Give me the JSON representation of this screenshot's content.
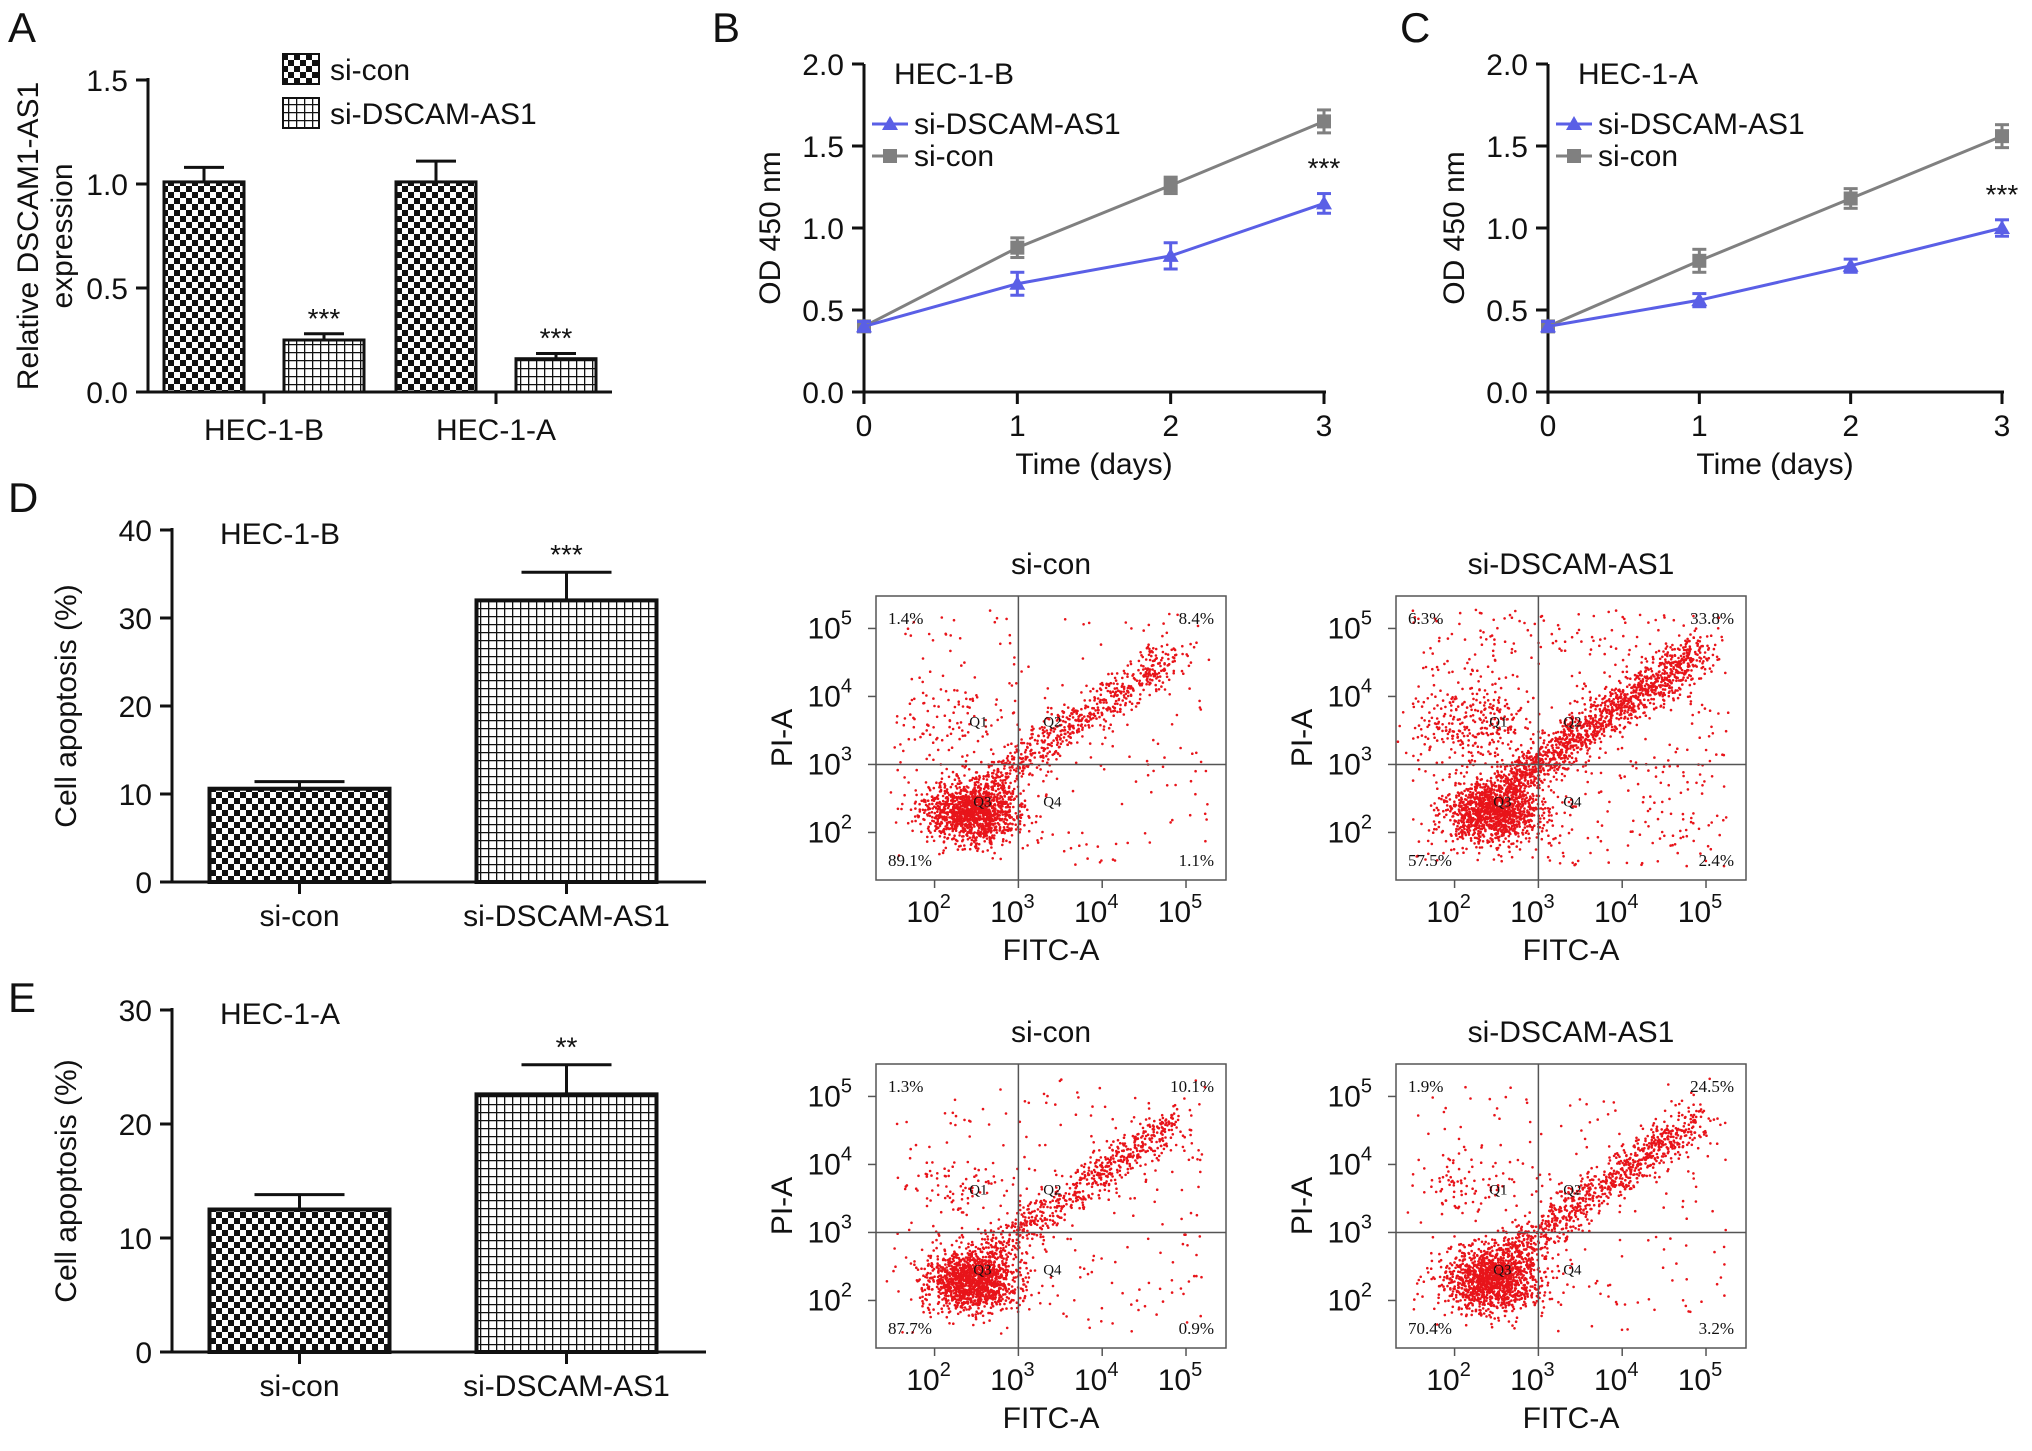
{
  "colors": {
    "si_dscam": "#5a5fe6",
    "si_con": "#808080",
    "dots": "#e8141a",
    "axis": "#111111"
  },
  "chart_data": [
    {
      "panel": "A",
      "type": "bar",
      "title": "",
      "ylabel": "Relative DSCAM1-AS1 expression",
      "ylabel_lines": [
        "Relative DSCAM1-AS1",
        "expression"
      ],
      "xlabel": "",
      "categories": [
        "HEC-1-B",
        "HEC-1-A"
      ],
      "ylim": [
        0,
        1.5
      ],
      "yticks": [
        0.0,
        0.5,
        1.0,
        1.5
      ],
      "ytick_labels": [
        "0.0",
        "0.5",
        "1.0",
        "1.5"
      ],
      "series": [
        {
          "name": "si-con",
          "pattern": "checker",
          "values": [
            1.01,
            1.01
          ],
          "errors": [
            0.07,
            0.1
          ],
          "sig": [
            "",
            ""
          ]
        },
        {
          "name": "si-DSCAM-AS1",
          "pattern": "grid",
          "values": [
            0.25,
            0.16
          ],
          "errors": [
            0.03,
            0.025
          ],
          "sig": [
            "***",
            "***"
          ]
        }
      ],
      "legend": "top-right"
    },
    {
      "panel": "B",
      "type": "line",
      "title": "HEC-1-B",
      "xlabel": "Time (days)",
      "ylabel": "OD 450 nm",
      "x": [
        0,
        1,
        2,
        3
      ],
      "xticks": [
        "0",
        "1",
        "2",
        "3"
      ],
      "ylim": [
        0,
        2.0
      ],
      "yticks": [
        0.0,
        0.5,
        1.0,
        1.5,
        2.0
      ],
      "ytick_labels": [
        "0.0",
        "0.5",
        "1.0",
        "1.5",
        "2.0"
      ],
      "series": [
        {
          "name": "si-DSCAM-AS1",
          "marker": "triangle",
          "color": "#5a5fe6",
          "values": [
            0.4,
            0.66,
            0.83,
            1.15
          ],
          "errors": [
            0.03,
            0.07,
            0.08,
            0.06
          ]
        },
        {
          "name": "si-con",
          "marker": "square",
          "color": "#808080",
          "values": [
            0.4,
            0.88,
            1.26,
            1.65
          ],
          "errors": [
            0.03,
            0.06,
            0.05,
            0.07
          ]
        }
      ],
      "annotation": "***",
      "legend": "top-left"
    },
    {
      "panel": "C",
      "type": "line",
      "title": "HEC-1-A",
      "xlabel": "Time (days)",
      "ylabel": "OD 450 nm",
      "x": [
        0,
        1,
        2,
        3
      ],
      "xticks": [
        "0",
        "1",
        "2",
        "3"
      ],
      "ylim": [
        0,
        2.0
      ],
      "yticks": [
        0.0,
        0.5,
        1.0,
        1.5,
        2.0
      ],
      "ytick_labels": [
        "0.0",
        "0.5",
        "1.0",
        "1.5",
        "2.0"
      ],
      "series": [
        {
          "name": "si-DSCAM-AS1",
          "marker": "triangle",
          "color": "#5a5fe6",
          "values": [
            0.4,
            0.56,
            0.77,
            1.0
          ],
          "errors": [
            0.03,
            0.04,
            0.04,
            0.05
          ]
        },
        {
          "name": "si-con",
          "marker": "square",
          "color": "#808080",
          "values": [
            0.4,
            0.8,
            1.18,
            1.56
          ],
          "errors": [
            0.03,
            0.07,
            0.06,
            0.07
          ]
        }
      ],
      "annotation": "***",
      "legend": "top-left"
    },
    {
      "panel": "D",
      "type": "bar",
      "title": "HEC-1-B",
      "ylabel": "Cell apoptosis (%)",
      "xlabel": "",
      "categories": [
        "si-con",
        "si-DSCAM-AS1"
      ],
      "patterns": [
        "checker",
        "grid"
      ],
      "ylim": [
        0,
        40
      ],
      "yticks": [
        0,
        10,
        20,
        30,
        40
      ],
      "ytick_labels": [
        "0",
        "10",
        "20",
        "30",
        "40"
      ],
      "values": [
        10.6,
        32.0
      ],
      "errors": [
        0.8,
        3.2
      ],
      "sig": [
        "",
        "***"
      ]
    },
    {
      "panel": "E",
      "type": "bar",
      "title": "HEC-1-A",
      "ylabel": "Cell apoptosis (%)",
      "xlabel": "",
      "categories": [
        "si-con",
        "si-DSCAM-AS1"
      ],
      "patterns": [
        "checker",
        "grid"
      ],
      "ylim": [
        0,
        30
      ],
      "yticks": [
        0,
        10,
        20,
        30
      ],
      "ytick_labels": [
        "0",
        "10",
        "20",
        "30"
      ],
      "values": [
        12.5,
        22.6
      ],
      "errors": [
        1.3,
        2.6
      ],
      "sig": [
        "",
        "**"
      ]
    },
    {
      "panel": "D-flow-1",
      "type": "scatter",
      "title": "si-con",
      "xlabel": "FITC-A",
      "ylabel": "PI-A",
      "scale": "log",
      "xlim": [
        20,
        300000
      ],
      "ylim": [
        20,
        300000
      ],
      "gate": [
        1000,
        1000
      ],
      "decade_ticks": [
        2,
        3,
        4,
        5
      ],
      "quadrant_labels": [
        "Q1",
        "Q2",
        "Q3",
        "Q4"
      ],
      "quadrants": {
        "Q1": "1.4%",
        "Q2": "8.4%",
        "Q3": "89.1%",
        "Q4": "1.1%"
      },
      "profile": "low"
    },
    {
      "panel": "D-flow-2",
      "type": "scatter",
      "title": "si-DSCAM-AS1",
      "xlabel": "FITC-A",
      "ylabel": "PI-A",
      "scale": "log",
      "xlim": [
        20,
        300000
      ],
      "ylim": [
        20,
        300000
      ],
      "gate": [
        1000,
        1000
      ],
      "decade_ticks": [
        2,
        3,
        4,
        5
      ],
      "quadrant_labels": [
        "Q1",
        "Q2",
        "Q3",
        "Q4"
      ],
      "quadrants": {
        "Q1": "6.3%",
        "Q2": "33.8%",
        "Q3": "57.5%",
        "Q4": "2.4%"
      },
      "profile": "high"
    },
    {
      "panel": "E-flow-1",
      "type": "scatter",
      "title": "si-con",
      "xlabel": "FITC-A",
      "ylabel": "PI-A",
      "scale": "log",
      "xlim": [
        20,
        300000
      ],
      "ylim": [
        20,
        300000
      ],
      "gate": [
        1000,
        1000
      ],
      "decade_ticks": [
        2,
        3,
        4,
        5
      ],
      "quadrant_labels": [
        "Q1",
        "Q2",
        "Q3",
        "Q4"
      ],
      "quadrants": {
        "Q1": "1.3%",
        "Q2": "10.1%",
        "Q3": "87.7%",
        "Q4": "0.9%"
      },
      "profile": "low"
    },
    {
      "panel": "E-flow-2",
      "type": "scatter",
      "title": "si-DSCAM-AS1",
      "xlabel": "FITC-A",
      "ylabel": "PI-A",
      "scale": "log",
      "xlim": [
        20,
        300000
      ],
      "ylim": [
        20,
        300000
      ],
      "gate": [
        1000,
        1000
      ],
      "decade_ticks": [
        2,
        3,
        4,
        5
      ],
      "quadrant_labels": [
        "Q1",
        "Q2",
        "Q3",
        "Q4"
      ],
      "quadrants": {
        "Q1": "1.9%",
        "Q2": "24.5%",
        "Q3": "70.4%",
        "Q4": "3.2%"
      },
      "profile": "mid"
    }
  ]
}
